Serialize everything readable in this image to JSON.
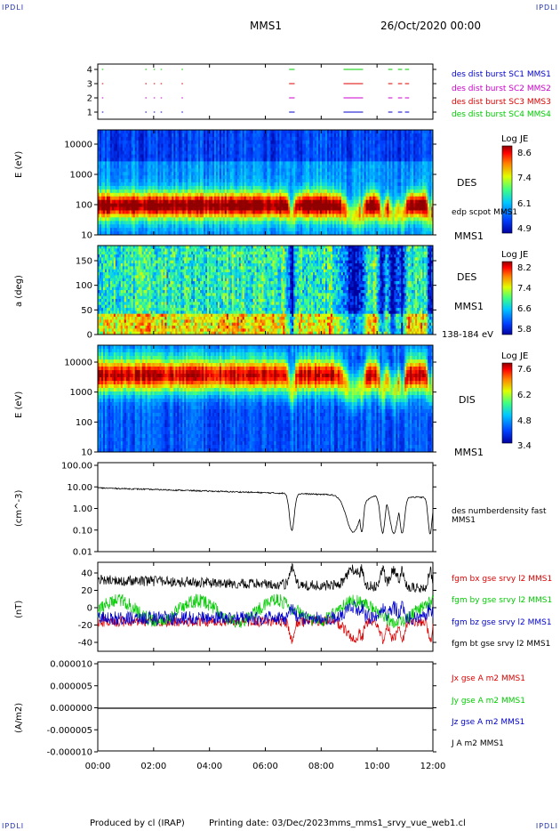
{
  "header": {
    "corner_left": "IPDLI",
    "corner_right": "IPDLI",
    "corner_bl": "IPDLI",
    "corner_br": "IPDLI",
    "spacecraft": "MMS1",
    "date": "26/Oct/2020 00:00"
  },
  "footer": {
    "produced": "Produced by cl (IRAP)",
    "printing": "Printing date: 03/Dec/2023",
    "file": "mms_mms1_srvy_vue_web1.cl"
  },
  "colors": {
    "red": "#dd0000",
    "green": "#00cc00",
    "blue": "#0000cc",
    "magenta": "#cc00cc",
    "black": "#000000",
    "cornerblue": "#2233aa"
  },
  "chart_data": [
    {
      "type": "scatter",
      "panel": "burst",
      "yticks": [
        "4",
        "3",
        "2",
        "1"
      ],
      "series": [
        {
          "name": "des dist burst SC1 MMS1",
          "color": "#0000cc"
        },
        {
          "name": "des dist burst SC2 MMS2",
          "color": "#cc00cc"
        },
        {
          "name": "des dist burst SC3 MMS3",
          "color": "#dd0000"
        },
        {
          "name": "des dist burst SC4 MMS4",
          "color": "#00cc00"
        }
      ],
      "burst_intervals_hours": [
        [
          0.15,
          0.2
        ],
        [
          1.7,
          1.75
        ],
        [
          2.0,
          2.05
        ],
        [
          2.25,
          2.3
        ],
        [
          3.0,
          3.05
        ],
        [
          6.85,
          7.05
        ],
        [
          8.8,
          9.5
        ],
        [
          10.4,
          10.55
        ],
        [
          10.75,
          10.9
        ],
        [
          11.0,
          11.15
        ]
      ]
    },
    {
      "type": "heatmap",
      "panel": "des-energy",
      "ylabel": "E (eV)",
      "yticks": [
        "10000",
        "1000",
        "100",
        "10"
      ],
      "label": "DES",
      "label2": "MMS1",
      "overlay": "edp scpot MMS1",
      "colorbar": {
        "title": "Log JE",
        "ticks": [
          "8.6",
          "7.4",
          "6.1",
          "4.9"
        ]
      }
    },
    {
      "type": "heatmap",
      "panel": "des-pitch",
      "ylabel": "a (deg)",
      "yticks": [
        "150",
        "100",
        "50",
        "0"
      ],
      "label": "DES",
      "label2": "MMS1",
      "energy_range": "138-184 eV",
      "colorbar": {
        "title": "Log JE",
        "ticks": [
          "8.2",
          "7.4",
          "6.6",
          "5.8"
        ]
      }
    },
    {
      "type": "heatmap",
      "panel": "dis-energy",
      "ylabel": "E (eV)",
      "yticks": [
        "10000",
        "1000",
        "100",
        "10"
      ],
      "label": "DIS",
      "label2": "MMS1",
      "colorbar": {
        "title": "Log JE",
        "ticks": [
          "7.6",
          "6.2",
          "4.8",
          "3.4"
        ]
      }
    },
    {
      "type": "line",
      "panel": "density",
      "ylabel": "(cm^-3)",
      "yticks": [
        "100.00",
        "10.00",
        "1.00",
        "0.10",
        "0.01"
      ],
      "series": [
        {
          "name": "des numberdensity fast MMS1",
          "color": "#000000"
        }
      ]
    },
    {
      "type": "line",
      "panel": "fgm",
      "ylabel": "(nT)",
      "yticks": [
        "40",
        "20",
        "0",
        "-20",
        "-40"
      ],
      "ylim": [
        -50,
        50
      ],
      "series": [
        {
          "name": "fgm bx gse srvy l2 MMS1",
          "color": "#dd0000"
        },
        {
          "name": "fgm by gse srvy l2 MMS1",
          "color": "#00cc00"
        },
        {
          "name": "fgm bz gse srvy l2 MMS1",
          "color": "#0000cc"
        },
        {
          "name": "fgm bt gse srvy l2 MMS1",
          "color": "#000000"
        }
      ]
    },
    {
      "type": "line",
      "panel": "current",
      "ylabel": "(A/m2)",
      "yticks": [
        "0.000010",
        "0.000005",
        "0.000000",
        "-0.000005",
        "-0.000010"
      ],
      "ylim": [
        -1e-05,
        1e-05
      ],
      "series": [
        {
          "name": "Jx gse A m2 MMS1",
          "color": "#dd0000"
        },
        {
          "name": "Jy gse A m2 MMS1",
          "color": "#00cc00"
        },
        {
          "name": "Jz gse A m2 MMS1",
          "color": "#0000cc"
        },
        {
          "name": "J A m2 MMS1",
          "color": "#000000"
        }
      ]
    }
  ],
  "xaxis": {
    "ticks": [
      "00:00",
      "02:00",
      "04:00",
      "06:00",
      "08:00",
      "10:00",
      "12:00"
    ],
    "range_hours": [
      0,
      12
    ]
  }
}
